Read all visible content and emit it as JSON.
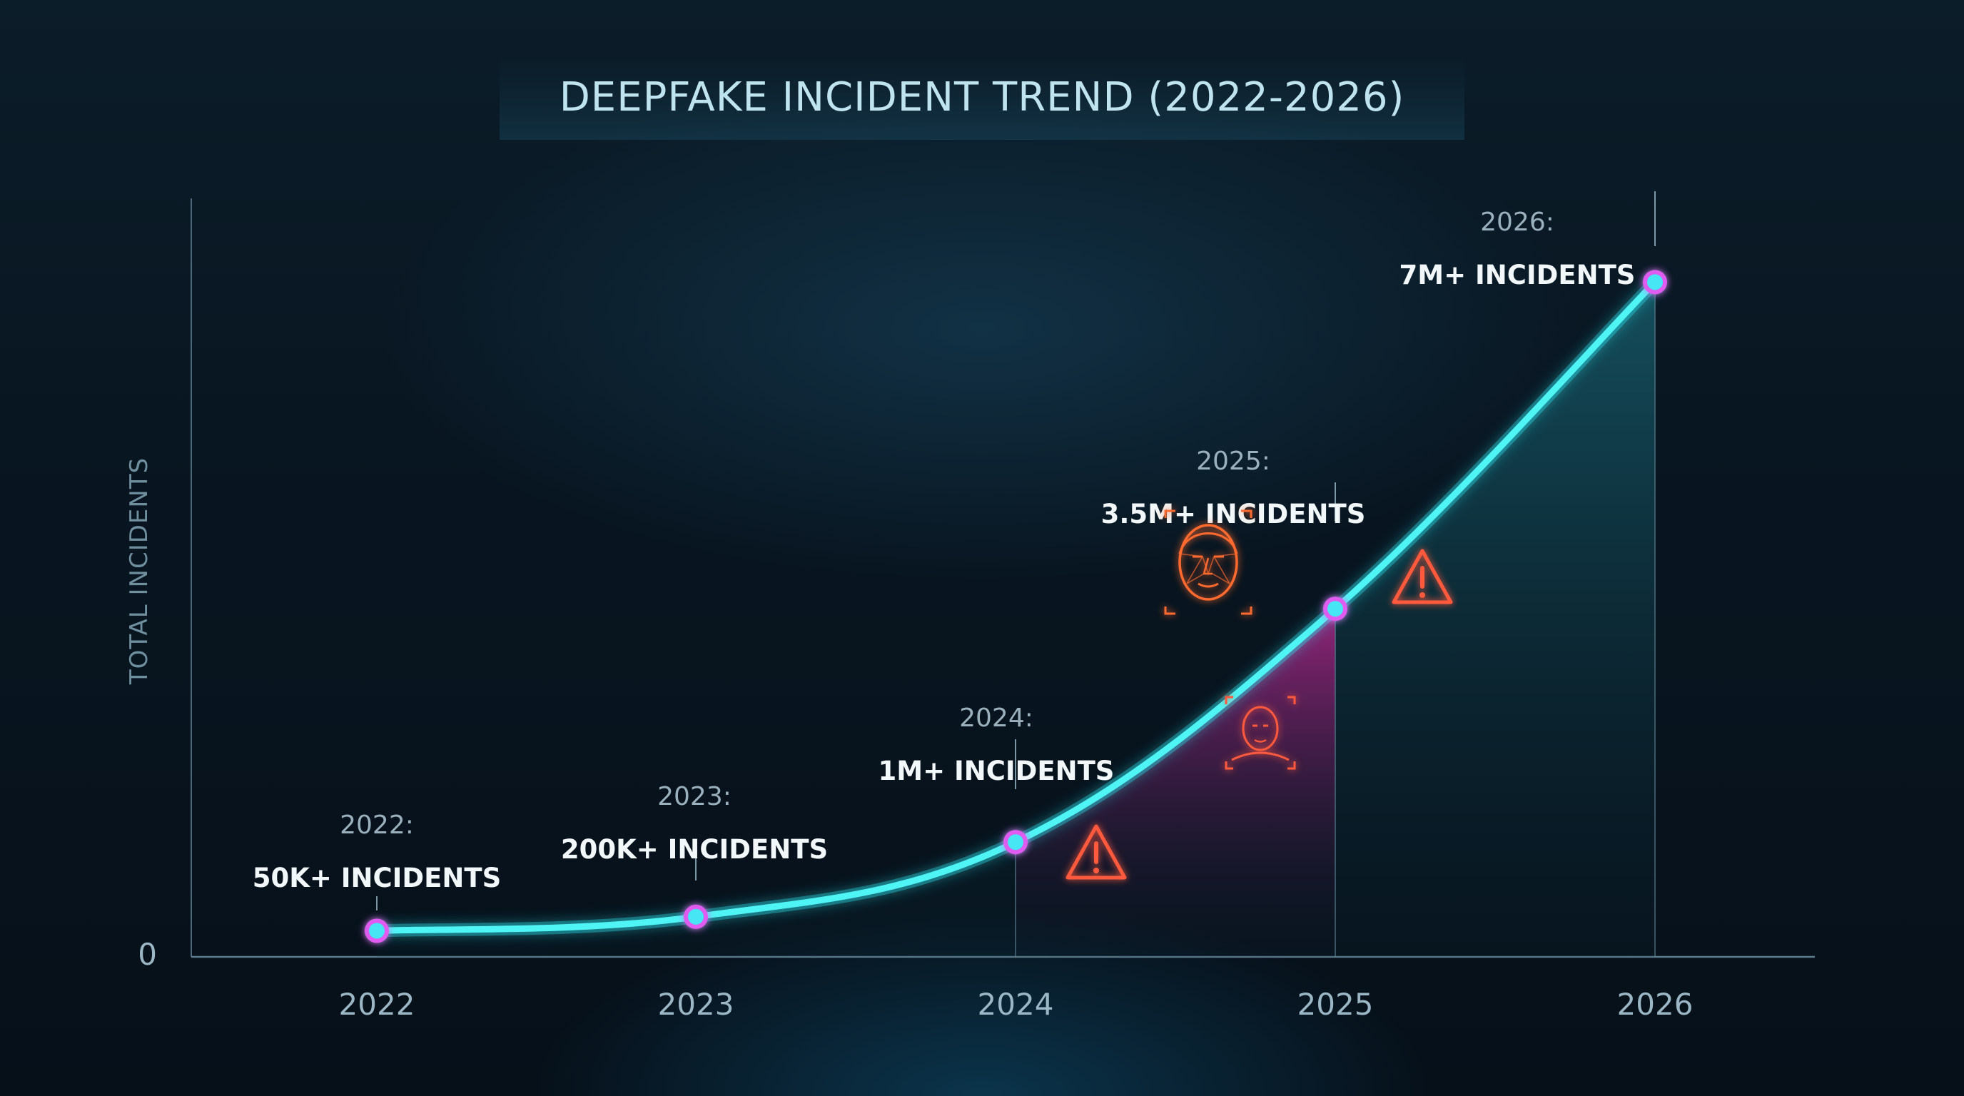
{
  "chart_data": {
    "type": "line",
    "title": "DEEPFAKE INCIDENT TREND (2022-2026)",
    "xlabel": "",
    "ylabel": "TOTAL INCIDENTS",
    "y_zero_label": "0",
    "categories": [
      "2022",
      "2023",
      "2024",
      "2025",
      "2026"
    ],
    "values": [
      50000,
      200000,
      1000000,
      3500000,
      7000000
    ],
    "ylim": [
      0,
      7500000
    ],
    "annotations": [
      {
        "year_label": "2022:",
        "value_label": "50K+ INCIDENTS"
      },
      {
        "year_label": "2023:",
        "value_label": "200K+ INCIDENTS"
      },
      {
        "year_label": "2024:",
        "value_label": "1M+ INCIDENTS"
      },
      {
        "year_label": "2025:",
        "value_label": "3.5M+ INCIDENTS"
      },
      {
        "year_label": "2026:",
        "value_label": "7M+ INCIDENTS"
      }
    ],
    "grid": false,
    "colors": {
      "line": "#3ff2f2",
      "marker_fill": "#46e6f5",
      "marker_ring": "#e05bf0",
      "highlight_fill": "#c0228f",
      "warning": "#ff5a3c",
      "face": "#ff6a2e"
    },
    "icons": [
      "warning-icon",
      "face-scan-icon",
      "warning-icon",
      "face-scan-icon",
      "warning-icon"
    ]
  }
}
